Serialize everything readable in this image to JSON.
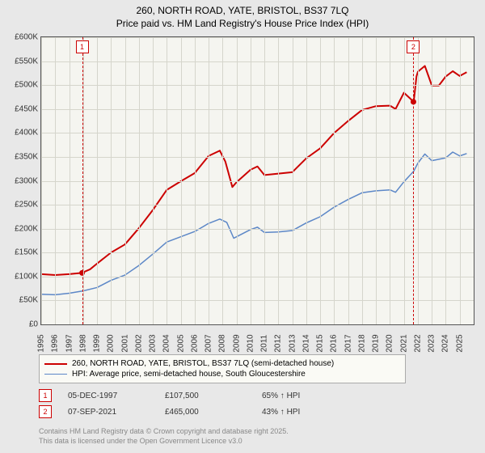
{
  "title": {
    "line1": "260, NORTH ROAD, YATE, BRISTOL, BS37 7LQ",
    "line2": "Price paid vs. HM Land Registry's House Price Index (HPI)"
  },
  "chart": {
    "type": "line",
    "background_color": "#f5f5f0",
    "grid_color": "#d5d5cc",
    "border_color": "#555555",
    "ylim": [
      0,
      600000
    ],
    "ytick_step": 50000,
    "ytick_labels": [
      "£0",
      "£50K",
      "£100K",
      "£150K",
      "£200K",
      "£250K",
      "£300K",
      "£350K",
      "£400K",
      "£450K",
      "£500K",
      "£550K",
      "£600K"
    ],
    "xlim": [
      1995,
      2026
    ],
    "xtick_step": 1,
    "xtick_labels": [
      "1995",
      "1996",
      "1997",
      "1998",
      "1999",
      "2000",
      "2001",
      "2002",
      "2003",
      "2004",
      "2005",
      "2006",
      "2007",
      "2008",
      "2009",
      "2010",
      "2011",
      "2012",
      "2013",
      "2014",
      "2015",
      "2016",
      "2017",
      "2018",
      "2019",
      "2020",
      "2021",
      "2022",
      "2023",
      "2024",
      "2025"
    ],
    "series": [
      {
        "name": "price_paid",
        "label": "260, NORTH ROAD, YATE, BRISTOL, BS37 7LQ (semi-detached house)",
        "color": "#cc0000",
        "line_width": 2,
        "data": [
          [
            1995,
            105000
          ],
          [
            1996,
            103000
          ],
          [
            1997,
            105000
          ],
          [
            1997.9,
            107500
          ],
          [
            1998.5,
            115000
          ],
          [
            1999,
            127000
          ],
          [
            2000,
            150000
          ],
          [
            2001,
            167000
          ],
          [
            2002,
            201000
          ],
          [
            2003,
            239000
          ],
          [
            2004,
            281000
          ],
          [
            2005,
            299000
          ],
          [
            2006,
            316000
          ],
          [
            2007,
            352000
          ],
          [
            2007.8,
            363000
          ],
          [
            2008.2,
            340000
          ],
          [
            2008.7,
            287000
          ],
          [
            2009,
            297000
          ],
          [
            2010,
            323000
          ],
          [
            2010.5,
            330000
          ],
          [
            2011,
            312000
          ],
          [
            2012,
            315000
          ],
          [
            2013,
            318000
          ],
          [
            2014,
            347000
          ],
          [
            2015,
            368000
          ],
          [
            2016,
            400000
          ],
          [
            2017,
            425000
          ],
          [
            2018,
            448000
          ],
          [
            2019,
            456000
          ],
          [
            2020,
            457000
          ],
          [
            2020.4,
            450000
          ],
          [
            2021,
            484000
          ],
          [
            2021.7,
            465000
          ],
          [
            2021.9,
            518000
          ],
          [
            2022,
            528000
          ],
          [
            2022.5,
            540000
          ],
          [
            2023,
            499000
          ],
          [
            2023.5,
            499000
          ],
          [
            2024,
            518000
          ],
          [
            2024.5,
            529000
          ],
          [
            2025,
            519000
          ],
          [
            2025.5,
            527000
          ]
        ]
      },
      {
        "name": "hpi",
        "label": "HPI: Average price, semi-detached house, South Gloucestershire",
        "color": "#5c87c7",
        "line_width": 1.5,
        "data": [
          [
            1995,
            63000
          ],
          [
            1996,
            62000
          ],
          [
            1997,
            65000
          ],
          [
            1998,
            70000
          ],
          [
            1999,
            77000
          ],
          [
            2000,
            92000
          ],
          [
            2001,
            103000
          ],
          [
            2002,
            123000
          ],
          [
            2003,
            147000
          ],
          [
            2004,
            172000
          ],
          [
            2005,
            183000
          ],
          [
            2006,
            194000
          ],
          [
            2007,
            211000
          ],
          [
            2007.8,
            220000
          ],
          [
            2008.3,
            213000
          ],
          [
            2008.8,
            180000
          ],
          [
            2009,
            183000
          ],
          [
            2010,
            198000
          ],
          [
            2010.5,
            203000
          ],
          [
            2011,
            192000
          ],
          [
            2012,
            193000
          ],
          [
            2013,
            196000
          ],
          [
            2014,
            212000
          ],
          [
            2015,
            225000
          ],
          [
            2016,
            245000
          ],
          [
            2017,
            261000
          ],
          [
            2018,
            275000
          ],
          [
            2019,
            279000
          ],
          [
            2020,
            281000
          ],
          [
            2020.4,
            276000
          ],
          [
            2021,
            298000
          ],
          [
            2021.7,
            320000
          ],
          [
            2022,
            337000
          ],
          [
            2022.5,
            356000
          ],
          [
            2023,
            342000
          ],
          [
            2024,
            348000
          ],
          [
            2024.5,
            360000
          ],
          [
            2025,
            352000
          ],
          [
            2025.5,
            357000
          ]
        ]
      }
    ],
    "markers": [
      {
        "id": "1",
        "x": 1997.93,
        "badge_color": "#cc0000",
        "dash_color": "#cc0000",
        "point_y": 107500,
        "point_color": "#cc0000"
      },
      {
        "id": "2",
        "x": 2021.68,
        "badge_color": "#cc0000",
        "dash_color": "#cc0000",
        "point_y": 465000,
        "point_color": "#cc0000"
      }
    ]
  },
  "legend": {
    "rows": [
      {
        "color": "#cc0000",
        "label": "260, NORTH ROAD, YATE, BRISTOL, BS37 7LQ (semi-detached house)"
      },
      {
        "color": "#5c87c7",
        "label": "HPI: Average price, semi-detached house, South Gloucestershire"
      }
    ]
  },
  "footnotes": [
    {
      "id": "1",
      "date": "05-DEC-1997",
      "price": "£107,500",
      "delta": "65% ↑ HPI",
      "badge_color": "#cc0000"
    },
    {
      "id": "2",
      "date": "07-SEP-2021",
      "price": "£465,000",
      "delta": "43% ↑ HPI",
      "badge_color": "#cc0000"
    }
  ],
  "licence": {
    "line1": "Contains HM Land Registry data © Crown copyright and database right 2025.",
    "line2": "This data is licensed under the Open Government Licence v3.0"
  }
}
